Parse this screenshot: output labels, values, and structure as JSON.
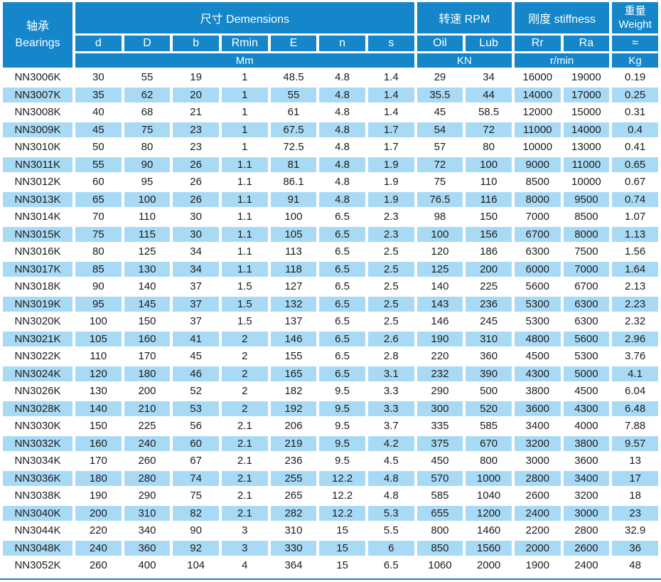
{
  "colors": {
    "header_blue": "#1486c9",
    "stripe_blue": "#a9daf5",
    "text": "#1c1c1c",
    "header_text": "#ffffff"
  },
  "header": {
    "corner": "轴承\nBearings",
    "groups": {
      "dimensions": "尺寸  Demensions",
      "rpm": "转速 RPM",
      "stiffness": "刚度  stiffness",
      "weight": "重量\nWeight"
    },
    "columns": [
      "d",
      "D",
      "b",
      "Rmin",
      "E",
      "n",
      "s",
      "Oil",
      "Lub",
      "Rr",
      "Ra",
      "≈"
    ],
    "units": {
      "dimensions": "Mm",
      "rpm": "KN",
      "stiffness": "r/min",
      "weight": "Kg"
    }
  },
  "chart_data": {
    "type": "table",
    "title": "NN30K series bearing specifications",
    "columns": [
      "Bearings",
      "d",
      "D",
      "b",
      "Rmin",
      "E",
      "n",
      "s",
      "Oil",
      "Lub",
      "Rr",
      "Ra",
      "≈"
    ],
    "units": {
      "dimensions": "Mm",
      "rpm": "KN",
      "stiffness": "r/min",
      "weight": "Kg"
    }
  },
  "rows": [
    {
      "model": "NN3006K",
      "values": [
        "30",
        "55",
        "19",
        "1",
        "48.5",
        "4.8",
        "1.4",
        "29",
        "34",
        "16000",
        "19000",
        "0.19"
      ]
    },
    {
      "model": "NN3007K",
      "values": [
        "35",
        "62",
        "20",
        "1",
        "55",
        "4.8",
        "1.4",
        "35.5",
        "44",
        "14000",
        "17000",
        "0.25"
      ]
    },
    {
      "model": "NN3008K",
      "values": [
        "40",
        "68",
        "21",
        "1",
        "61",
        "4.8",
        "1.4",
        "45",
        "58.5",
        "12000",
        "15000",
        "0.31"
      ]
    },
    {
      "model": "NN3009K",
      "values": [
        "45",
        "75",
        "23",
        "1",
        "67.5",
        "4.8",
        "1.7",
        "54",
        "72",
        "11000",
        "14000",
        "0.4"
      ]
    },
    {
      "model": "NN3010K",
      "values": [
        "50",
        "80",
        "23",
        "1",
        "72.5",
        "4.8",
        "1.7",
        "57",
        "80",
        "10000",
        "13000",
        "0.41"
      ]
    },
    {
      "model": "NN3011K",
      "values": [
        "55",
        "90",
        "26",
        "1.1",
        "81",
        "4.8",
        "1.9",
        "72",
        "100",
        "9000",
        "11000",
        "0.65"
      ]
    },
    {
      "model": "NN3012K",
      "values": [
        "60",
        "95",
        "26",
        "1.1",
        "86.1",
        "4.8",
        "1.9",
        "75",
        "110",
        "8500",
        "10000",
        "0.67"
      ]
    },
    {
      "model": "NN3013K",
      "values": [
        "65",
        "100",
        "26",
        "1.1",
        "91",
        "4.8",
        "1.9",
        "76.5",
        "116",
        "8000",
        "9500",
        "0.74"
      ]
    },
    {
      "model": "NN3014K",
      "values": [
        "70",
        "110",
        "30",
        "1.1",
        "100",
        "6.5",
        "2.3",
        "98",
        "150",
        "7000",
        "8500",
        "1.07"
      ]
    },
    {
      "model": "NN3015K",
      "values": [
        "75",
        "115",
        "30",
        "1.1",
        "105",
        "6.5",
        "2.3",
        "100",
        "156",
        "6700",
        "8000",
        "1.13"
      ]
    },
    {
      "model": "NN3016K",
      "values": [
        "80",
        "125",
        "34",
        "1.1",
        "113",
        "6.5",
        "2.5",
        "120",
        "186",
        "6300",
        "7500",
        "1.56"
      ]
    },
    {
      "model": "NN3017K",
      "values": [
        "85",
        "130",
        "34",
        "1.1",
        "118",
        "6.5",
        "2.5",
        "125",
        "200",
        "6000",
        "7000",
        "1.64"
      ]
    },
    {
      "model": "NN3018K",
      "values": [
        "90",
        "140",
        "37",
        "1.5",
        "127",
        "6.5",
        "2.5",
        "140",
        "225",
        "5600",
        "6700",
        "2.13"
      ]
    },
    {
      "model": "NN3019K",
      "values": [
        "95",
        "145",
        "37",
        "1.5",
        "132",
        "6.5",
        "2.5",
        "143",
        "236",
        "5300",
        "6300",
        "2.23"
      ]
    },
    {
      "model": "NN3020K",
      "values": [
        "100",
        "150",
        "37",
        "1.5",
        "137",
        "6.5",
        "2.5",
        "146",
        "245",
        "5300",
        "6300",
        "2.32"
      ]
    },
    {
      "model": "NN3021K",
      "values": [
        "105",
        "160",
        "41",
        "2",
        "146",
        "6.5",
        "2.6",
        "190",
        "310",
        "4800",
        "5600",
        "2.96"
      ]
    },
    {
      "model": "NN3022K",
      "values": [
        "110",
        "170",
        "45",
        "2",
        "155",
        "6.5",
        "2.8",
        "220",
        "360",
        "4500",
        "5300",
        "3.76"
      ]
    },
    {
      "model": "NN3024K",
      "values": [
        "120",
        "180",
        "46",
        "2",
        "165",
        "6.5",
        "3.1",
        "232",
        "390",
        "4300",
        "5000",
        "4.1"
      ]
    },
    {
      "model": "NN3026K",
      "values": [
        "130",
        "200",
        "52",
        "2",
        "182",
        "9.5",
        "3.3",
        "290",
        "500",
        "3800",
        "4500",
        "6.04"
      ]
    },
    {
      "model": "NN3028K",
      "values": [
        "140",
        "210",
        "53",
        "2",
        "192",
        "9.5",
        "3.3",
        "300",
        "520",
        "3600",
        "4300",
        "6.48"
      ]
    },
    {
      "model": "NN3030K",
      "values": [
        "150",
        "225",
        "56",
        "2.1",
        "206",
        "9.5",
        "3.7",
        "335",
        "585",
        "3400",
        "4000",
        "7.88"
      ]
    },
    {
      "model": "NN3032K",
      "values": [
        "160",
        "240",
        "60",
        "2.1",
        "219",
        "9.5",
        "4.2",
        "375",
        "670",
        "3200",
        "3800",
        "9.57"
      ]
    },
    {
      "model": "NN3034K",
      "values": [
        "170",
        "260",
        "67",
        "2.1",
        "236",
        "9.5",
        "4.5",
        "450",
        "800",
        "3000",
        "3600",
        "13"
      ]
    },
    {
      "model": "NN3036K",
      "values": [
        "180",
        "280",
        "74",
        "2.1",
        "255",
        "12.2",
        "4.8",
        "570",
        "1000",
        "2800",
        "3400",
        "17"
      ]
    },
    {
      "model": "NN3038K",
      "values": [
        "190",
        "290",
        "75",
        "2.1",
        "265",
        "12.2",
        "4.8",
        "585",
        "1040",
        "2600",
        "3200",
        "18"
      ]
    },
    {
      "model": "NN3040K",
      "values": [
        "200",
        "310",
        "82",
        "2.1",
        "282",
        "12.2",
        "5.3",
        "655",
        "1200",
        "2400",
        "3000",
        "23"
      ]
    },
    {
      "model": "NN3044K",
      "values": [
        "220",
        "340",
        "90",
        "3",
        "310",
        "15",
        "5.5",
        "800",
        "1460",
        "2200",
        "2800",
        "32.9"
      ]
    },
    {
      "model": "NN3048K",
      "values": [
        "240",
        "360",
        "92",
        "3",
        "330",
        "15",
        "6",
        "850",
        "1560",
        "2000",
        "2600",
        "36"
      ]
    },
    {
      "model": "NN3052K",
      "values": [
        "260",
        "400",
        "104",
        "4",
        "364",
        "15",
        "6.5",
        "1060",
        "2000",
        "1900",
        "2400",
        "48"
      ]
    }
  ]
}
